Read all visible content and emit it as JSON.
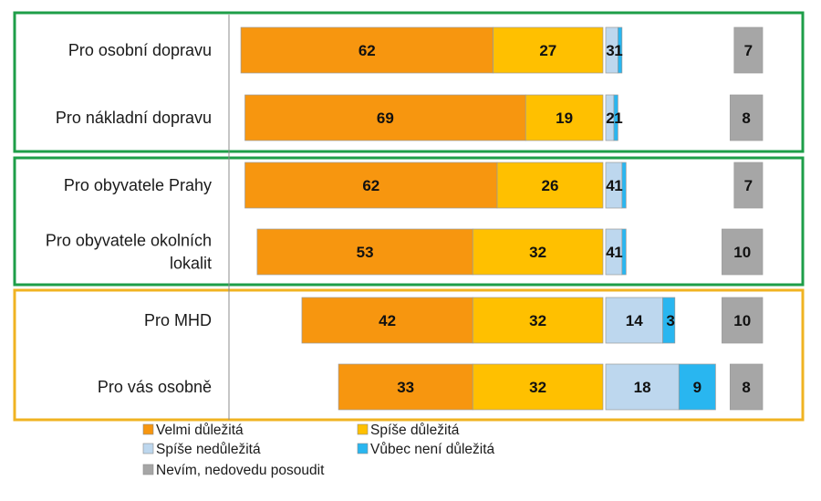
{
  "chart_data": {
    "type": "bar",
    "orientation": "horizontal",
    "stacking": "diverging",
    "categories": [
      [
        "Pro osobní dopravu"
      ],
      [
        "Pro nákladní dopravu"
      ],
      [
        "Pro obyvatele Prahy"
      ],
      [
        "Pro obyvatele okolních",
        "lokalit"
      ],
      [
        "Pro MHD"
      ],
      [
        "Pro vás osobně"
      ]
    ],
    "series": [
      {
        "name": "Velmi důležitá",
        "color": "#f7960f",
        "values": [
          62,
          69,
          62,
          53,
          42,
          33
        ]
      },
      {
        "name": "Spíše důležitá",
        "color": "#ffc000",
        "values": [
          27,
          19,
          26,
          32,
          32,
          32
        ]
      },
      {
        "name": "Spíše nedůležitá",
        "color": "#bdd7ee",
        "values": [
          3,
          2,
          4,
          4,
          14,
          18
        ]
      },
      {
        "name": "Vůbec není důležitá",
        "color": "#29b6f0",
        "values": [
          1,
          1,
          1,
          1,
          3,
          9
        ]
      },
      {
        "name": "Nevím, nedovedu posoudit",
        "color": "#a6a6a6",
        "values": [
          7,
          8,
          7,
          10,
          10,
          8
        ]
      }
    ],
    "groups": [
      {
        "categories": [
          0,
          1
        ],
        "border_color": "#1e9e48"
      },
      {
        "categories": [
          2,
          3
        ],
        "border_color": "#1e9e48"
      },
      {
        "categories": [
          4,
          5
        ],
        "border_color": "#f0b322"
      }
    ],
    "legend_position": "bottom",
    "grid": false,
    "title": "",
    "xlabel": "",
    "ylabel": ""
  }
}
